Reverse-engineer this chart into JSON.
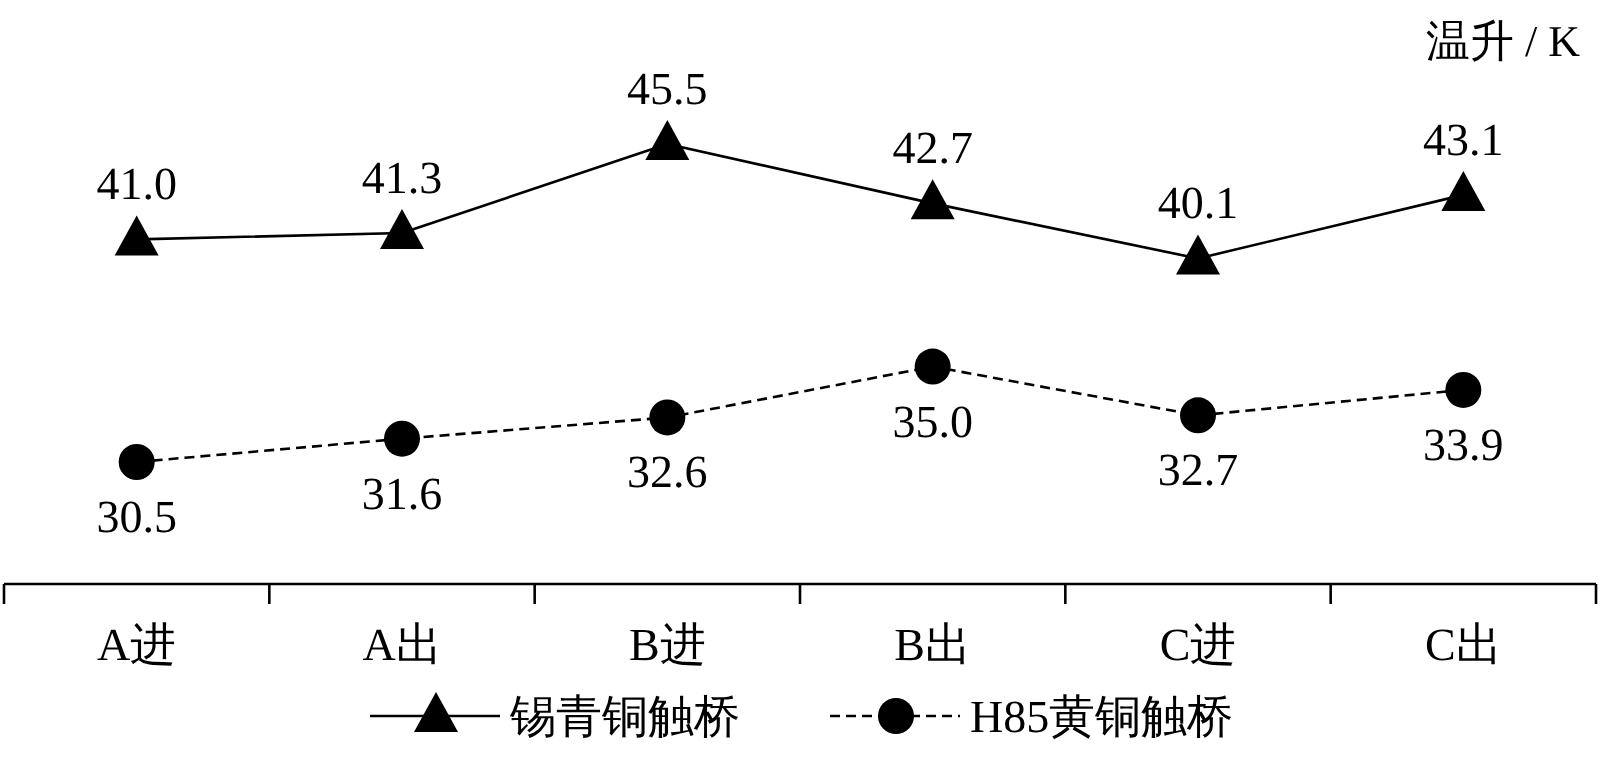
{
  "chart_data": {
    "type": "line",
    "ylabel": "温升 / K",
    "categories": [
      "A进",
      "A出",
      "B进",
      "B出",
      "C进",
      "C出"
    ],
    "series": [
      {
        "name": "锡青铜触桥",
        "color": "#000000",
        "marker": "triangle",
        "line_style": "solid",
        "values": [
          41.0,
          41.3,
          45.5,
          42.7,
          40.1,
          43.1
        ],
        "value_labels": [
          "41.0",
          "41.3",
          "45.5",
          "42.7",
          "40.1",
          "43.1"
        ]
      },
      {
        "name": "H85黄铜触桥",
        "color": "#000000",
        "marker": "circle",
        "line_style": "dashed",
        "values": [
          30.5,
          31.6,
          32.6,
          35.0,
          32.7,
          33.9
        ],
        "value_labels": [
          "30.5",
          "31.6",
          "32.6",
          "35.0",
          "32.7",
          "33.9"
        ]
      }
    ],
    "legend": "bottom"
  }
}
